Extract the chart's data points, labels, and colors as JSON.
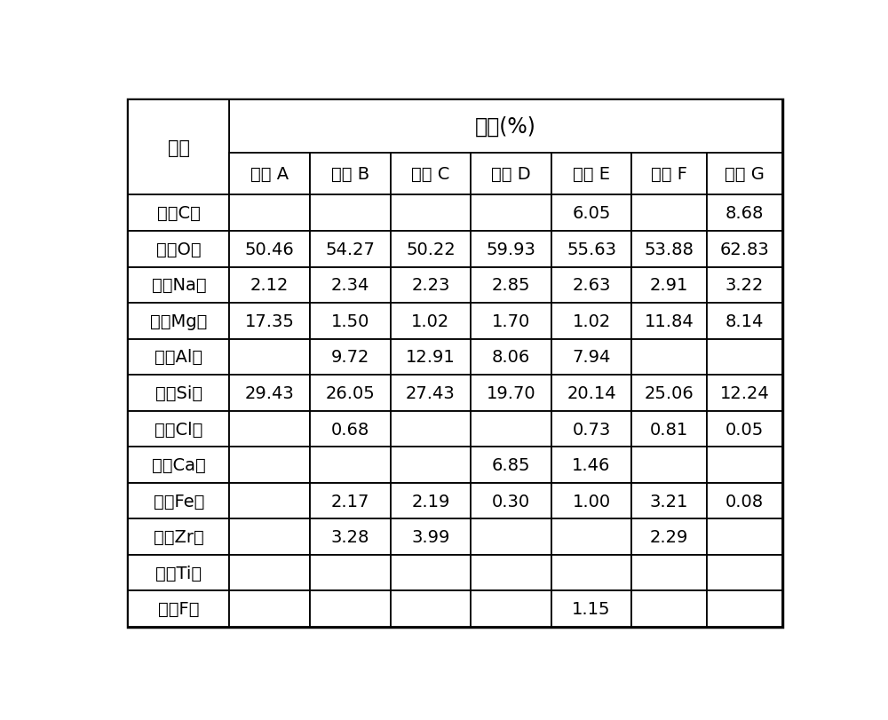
{
  "header_top": "含量(%)",
  "header_left": "元素",
  "col_headers": [
    "样品 A",
    "样品 B",
    "样品 C",
    "样品 D",
    "样品 E",
    "样品 F",
    "样品 G"
  ],
  "row_headers": [
    "碳（C）",
    "氧（O）",
    "钠（Na）",
    "镁（Mg）",
    "铝（Al）",
    "硅（Si）",
    "氯（Cl）",
    "钙（Ca）",
    "铁（Fe）",
    "锆（Zr）",
    "钛（Ti）",
    "氟（F）"
  ],
  "table_data": [
    [
      "",
      "",
      "",
      "",
      "6.05",
      "",
      "8.68"
    ],
    [
      "50.46",
      "54.27",
      "50.22",
      "59.93",
      "55.63",
      "53.88",
      "62.83"
    ],
    [
      "2.12",
      "2.34",
      "2.23",
      "2.85",
      "2.63",
      "2.91",
      "3.22"
    ],
    [
      "17.35",
      "1.50",
      "1.02",
      "1.70",
      "1.02",
      "11.84",
      "8.14"
    ],
    [
      "",
      "9.72",
      "12.91",
      "8.06",
      "7.94",
      "",
      ""
    ],
    [
      "29.43",
      "26.05",
      "27.43",
      "19.70",
      "20.14",
      "25.06",
      "12.24"
    ],
    [
      "",
      "0.68",
      "",
      "",
      "0.73",
      "0.81",
      "0.05"
    ],
    [
      "",
      "",
      "",
      "6.85",
      "1.46",
      "",
      ""
    ],
    [
      "",
      "2.17",
      "2.19",
      "0.30",
      "1.00",
      "3.21",
      "0.08"
    ],
    [
      "",
      "3.28",
      "3.99",
      "",
      "",
      "2.29",
      ""
    ],
    [
      "",
      "",
      "",
      "",
      "",
      "",
      ""
    ],
    [
      "",
      "",
      "",
      "",
      "1.15",
      "",
      ""
    ]
  ],
  "bg_color": "#ffffff",
  "text_color": "#000000",
  "line_color": "#000000",
  "font_size": 14,
  "header_font_size": 15
}
